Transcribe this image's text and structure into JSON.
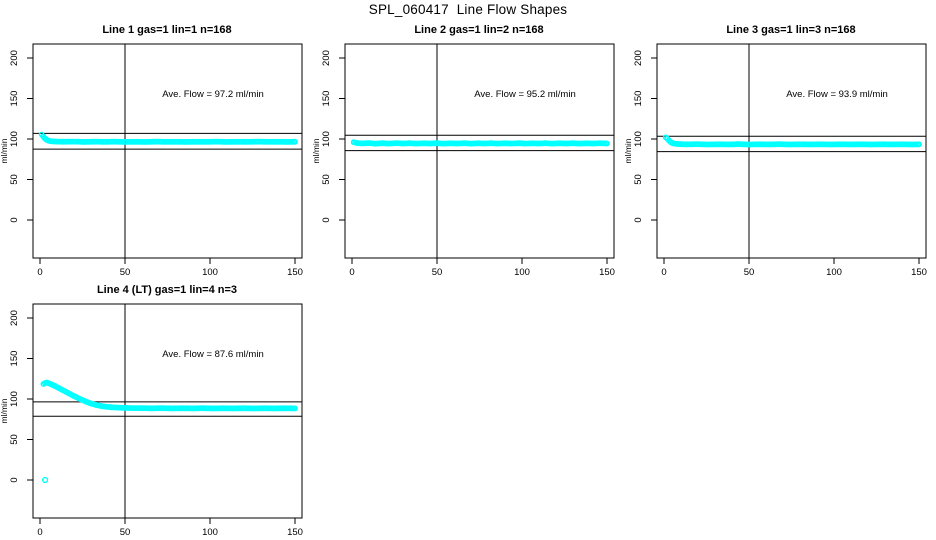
{
  "page_title": "SPL_060417  Line Flow Shapes",
  "colors": {
    "marker": "#00FFFF",
    "axis": "#000000",
    "background": "#FFFFFF"
  },
  "layout": {
    "grid_rows": 2,
    "grid_cols": 3,
    "used_cells": 4
  },
  "chart_data": [
    {
      "type": "scatter",
      "title": "Line 1 gas=1 lin=1 n=168",
      "annotation": "Ave. Flow =  97.2  ml/min",
      "ave_flow_ml_min": 97.2,
      "n": 168,
      "ylabel": "ml/min",
      "xlabel": "",
      "xlim": [
        -4,
        154
      ],
      "ylim": [
        -47,
        217
      ],
      "xticks": [
        0,
        50,
        100,
        150
      ],
      "xtick_labels": [
        "0",
        "50",
        "100",
        "150"
      ],
      "yticks": [
        0,
        50,
        100,
        150,
        200
      ],
      "ytick_labels": [
        "0",
        "50",
        "100",
        "150",
        "200"
      ],
      "vline": 50,
      "hlines": [
        106.9,
        87.5
      ],
      "marker": "open-circle",
      "points": [
        [
          1,
          105.5
        ],
        [
          2,
          103
        ],
        [
          3,
          100.5
        ],
        [
          4,
          98.8
        ],
        [
          5,
          97.9
        ],
        [
          6,
          97.4
        ],
        [
          8,
          97
        ],
        [
          10,
          96.8
        ],
        [
          14,
          96.6
        ],
        [
          20,
          96.8
        ],
        [
          26,
          96.4
        ],
        [
          32,
          96.7
        ],
        [
          38,
          96.5
        ],
        [
          44,
          96.7
        ],
        [
          50,
          96.4
        ],
        [
          56,
          96.6
        ],
        [
          62,
          96.4
        ],
        [
          68,
          96.7
        ],
        [
          74,
          96.5
        ],
        [
          80,
          96.6
        ],
        [
          86,
          96.4
        ],
        [
          92,
          96.6
        ],
        [
          98,
          96.5
        ],
        [
          104,
          96.7
        ],
        [
          110,
          96.4
        ],
        [
          116,
          96.6
        ],
        [
          122,
          96.5
        ],
        [
          128,
          96.7
        ],
        [
          134,
          96.5
        ],
        [
          140,
          96.6
        ],
        [
          146,
          96.4
        ],
        [
          150,
          96.6
        ]
      ]
    },
    {
      "type": "scatter",
      "title": "Line 2 gas=1 lin=2 n=168",
      "annotation": "Ave. Flow =  95.2  ml/min",
      "ave_flow_ml_min": 95.2,
      "n": 168,
      "ylabel": "ml/min",
      "xlabel": "",
      "xlim": [
        -4,
        154
      ],
      "ylim": [
        -47,
        217
      ],
      "xticks": [
        0,
        50,
        100,
        150
      ],
      "xtick_labels": [
        "0",
        "50",
        "100",
        "150"
      ],
      "yticks": [
        0,
        50,
        100,
        150,
        200
      ],
      "ytick_labels": [
        "0",
        "50",
        "100",
        "150",
        "200"
      ],
      "vline": 50,
      "hlines": [
        104.7,
        85.7
      ],
      "marker": "open-circle",
      "points": [
        [
          1,
          96
        ],
        [
          3,
          94.9
        ],
        [
          6,
          94.6
        ],
        [
          10,
          94.9
        ],
        [
          14,
          94.3
        ],
        [
          18,
          94.8
        ],
        [
          22,
          94.3
        ],
        [
          26,
          94.9
        ],
        [
          30,
          94.4
        ],
        [
          34,
          94.8
        ],
        [
          38,
          94.3
        ],
        [
          42,
          94.7
        ],
        [
          46,
          94.4
        ],
        [
          50,
          94.8
        ],
        [
          54,
          94.3
        ],
        [
          58,
          94.7
        ],
        [
          62,
          94.4
        ],
        [
          66,
          94.8
        ],
        [
          70,
          94.3
        ],
        [
          74,
          94.7
        ],
        [
          78,
          94.4
        ],
        [
          82,
          94.8
        ],
        [
          86,
          94.3
        ],
        [
          90,
          94.7
        ],
        [
          94,
          94.4
        ],
        [
          98,
          94.8
        ],
        [
          102,
          94.3
        ],
        [
          106,
          94.7
        ],
        [
          110,
          94.4
        ],
        [
          114,
          94.8
        ],
        [
          118,
          94.3
        ],
        [
          122,
          94.7
        ],
        [
          126,
          94.4
        ],
        [
          130,
          94.8
        ],
        [
          134,
          94.3
        ],
        [
          138,
          94.7
        ],
        [
          142,
          94.4
        ],
        [
          146,
          94.8
        ],
        [
          150,
          94.5
        ]
      ]
    },
    {
      "type": "scatter",
      "title": "Line 3 gas=1 lin=3 n=168",
      "annotation": "Ave. Flow =  93.9  ml/min",
      "ave_flow_ml_min": 93.9,
      "n": 168,
      "ylabel": "ml/min",
      "xlabel": "",
      "xlim": [
        -4,
        154
      ],
      "ylim": [
        -47,
        217
      ],
      "xticks": [
        0,
        50,
        100,
        150
      ],
      "xtick_labels": [
        "0",
        "50",
        "100",
        "150"
      ],
      "yticks": [
        0,
        50,
        100,
        150,
        200
      ],
      "ytick_labels": [
        "0",
        "50",
        "100",
        "150",
        "200"
      ],
      "vline": 50,
      "hlines": [
        103.3,
        84.5
      ],
      "marker": "open-circle",
      "points": [
        [
          1,
          102
        ],
        [
          2,
          100.5
        ],
        [
          3,
          98
        ],
        [
          4,
          96
        ],
        [
          5,
          94.9
        ],
        [
          6,
          94.3
        ],
        [
          8,
          93.8
        ],
        [
          10,
          93.6
        ],
        [
          14,
          93.4
        ],
        [
          20,
          93.6
        ],
        [
          26,
          93.2
        ],
        [
          32,
          93.5
        ],
        [
          38,
          93.3
        ],
        [
          44,
          93.6
        ],
        [
          50,
          93.2
        ],
        [
          56,
          93.5
        ],
        [
          62,
          93.3
        ],
        [
          68,
          93.6
        ],
        [
          74,
          93.2
        ],
        [
          80,
          93.5
        ],
        [
          86,
          93.3
        ],
        [
          92,
          93.5
        ],
        [
          98,
          93.2
        ],
        [
          104,
          93.5
        ],
        [
          110,
          93.3
        ],
        [
          116,
          93.5
        ],
        [
          122,
          93.2
        ],
        [
          128,
          93.5
        ],
        [
          134,
          93.3
        ],
        [
          140,
          93.5
        ],
        [
          146,
          93.2
        ],
        [
          150,
          93.4
        ]
      ]
    },
    {
      "type": "scatter",
      "title": "Line 4 (LT) gas=1 lin=4 n=3",
      "annotation": "Ave. Flow =  87.6  ml/min",
      "ave_flow_ml_min": 87.6,
      "n": 3,
      "ylabel": "ml/min",
      "xlabel": "",
      "xlim": [
        -4,
        154
      ],
      "ylim": [
        -47,
        217
      ],
      "xticks": [
        0,
        50,
        100,
        150
      ],
      "xtick_labels": [
        "0",
        "50",
        "100",
        "150"
      ],
      "yticks": [
        0,
        50,
        100,
        150,
        200
      ],
      "ytick_labels": [
        "0",
        "50",
        "100",
        "150",
        "200"
      ],
      "vline": 50,
      "hlines": [
        96.4,
        78.8
      ],
      "marker": "open-circle",
      "points": [
        [
          2,
          118.5
        ],
        [
          3,
          119.8
        ],
        [
          4,
          120.2
        ],
        [
          5,
          119.6
        ],
        [
          7,
          117.8
        ],
        [
          9,
          115.8
        ],
        [
          11,
          113.6
        ],
        [
          13,
          111.4
        ],
        [
          15,
          109.2
        ],
        [
          18,
          105.8
        ],
        [
          21,
          102.6
        ],
        [
          24,
          99.6
        ],
        [
          27,
          96.8
        ],
        [
          30,
          94.4
        ],
        [
          33,
          92.6
        ],
        [
          36,
          91.3
        ],
        [
          39,
          90.4
        ],
        [
          42,
          89.8
        ],
        [
          46,
          89.3
        ],
        [
          50,
          89
        ],
        [
          55,
          88.8
        ],
        [
          60,
          88.7
        ],
        [
          66,
          88.5
        ],
        [
          72,
          88.7
        ],
        [
          78,
          88.4
        ],
        [
          84,
          88.6
        ],
        [
          90,
          88.4
        ],
        [
          96,
          88.7
        ],
        [
          102,
          88.3
        ],
        [
          108,
          88.6
        ],
        [
          114,
          88.4
        ],
        [
          120,
          88.6
        ],
        [
          126,
          88.3
        ],
        [
          132,
          88.6
        ],
        [
          138,
          88.4
        ],
        [
          144,
          88.6
        ],
        [
          150,
          88.4
        ]
      ],
      "outliers": [
        [
          3,
          0
        ]
      ]
    }
  ]
}
